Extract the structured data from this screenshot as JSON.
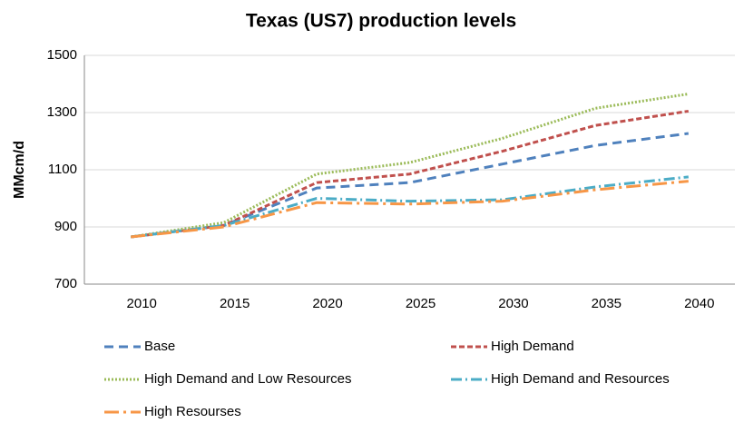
{
  "chart_data": {
    "type": "line",
    "title": "Texas (US7) production levels",
    "y_label": "MMcm/d",
    "categories": [
      "2010",
      "2015",
      "2020",
      "2025",
      "2030",
      "2035",
      "2040"
    ],
    "series": [
      {
        "name": "Base",
        "color": "#4f81bd",
        "values": [
          865,
          905,
          1036,
          1055,
          1120,
          1185,
          1227
        ]
      },
      {
        "name": "High Demand",
        "color": "#c0504d",
        "values": [
          865,
          905,
          1055,
          1085,
          1165,
          1255,
          1305
        ]
      },
      {
        "name": "High Demand and Low Resources",
        "color": "#9bbb59",
        "values": [
          865,
          915,
          1085,
          1125,
          1210,
          1315,
          1365
        ]
      },
      {
        "name": "High Demand and Resources",
        "color": "#4bacc6",
        "values": [
          865,
          905,
          1000,
          990,
          995,
          1040,
          1075
        ]
      },
      {
        "name": "High Resourses",
        "color": "#f79646",
        "values": [
          865,
          900,
          985,
          980,
          990,
          1030,
          1060
        ]
      }
    ],
    "ylim": [
      700,
      1500
    ],
    "yticks": [
      700,
      900,
      1100,
      1300,
      1500
    ],
    "grid": true
  }
}
